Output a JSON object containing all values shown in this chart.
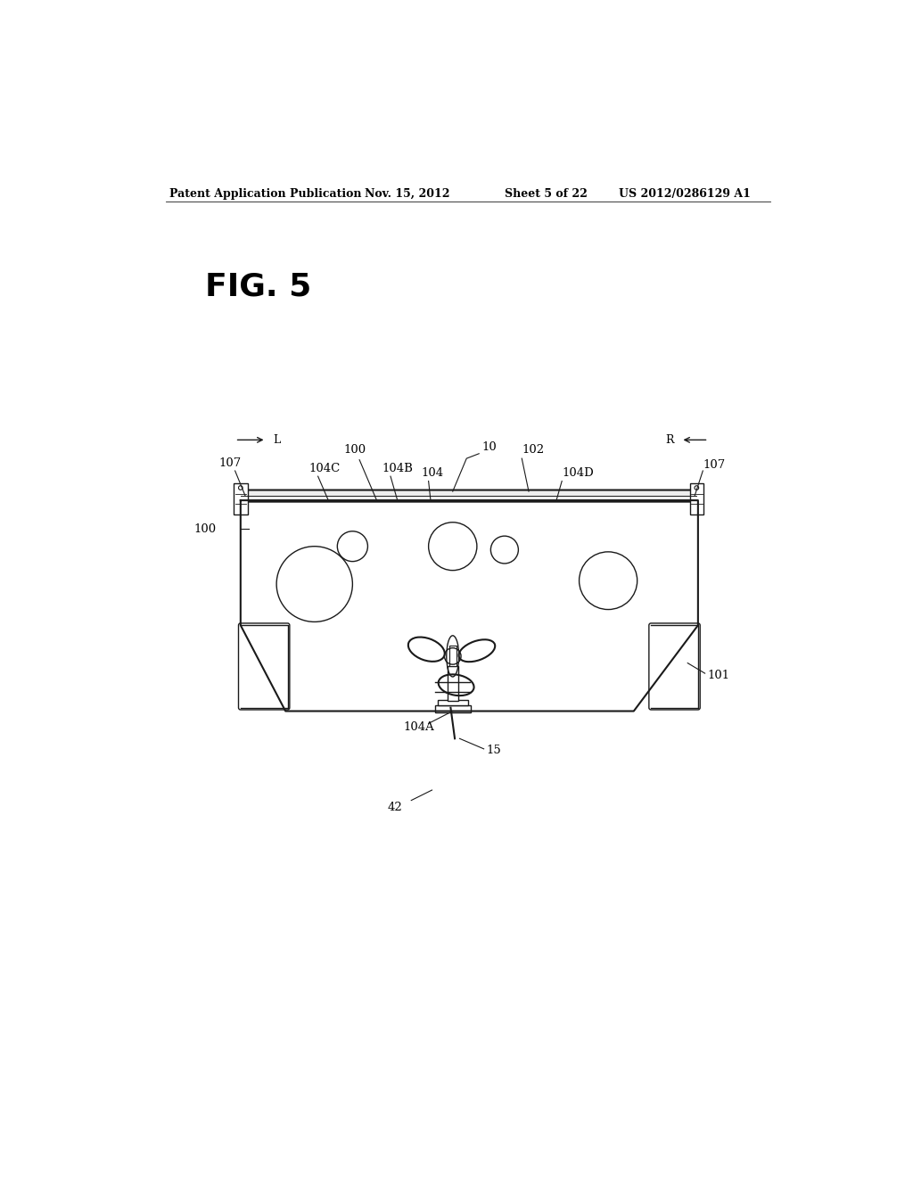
{
  "bg_color": "#ffffff",
  "line_color": "#1a1a1a",
  "header_text": "Patent Application Publication",
  "header_date": "Nov. 15, 2012",
  "header_sheet": "Sheet 5 of 22",
  "header_patent": "US 2012/0286129 A1",
  "fig_label": "FIG. 5"
}
